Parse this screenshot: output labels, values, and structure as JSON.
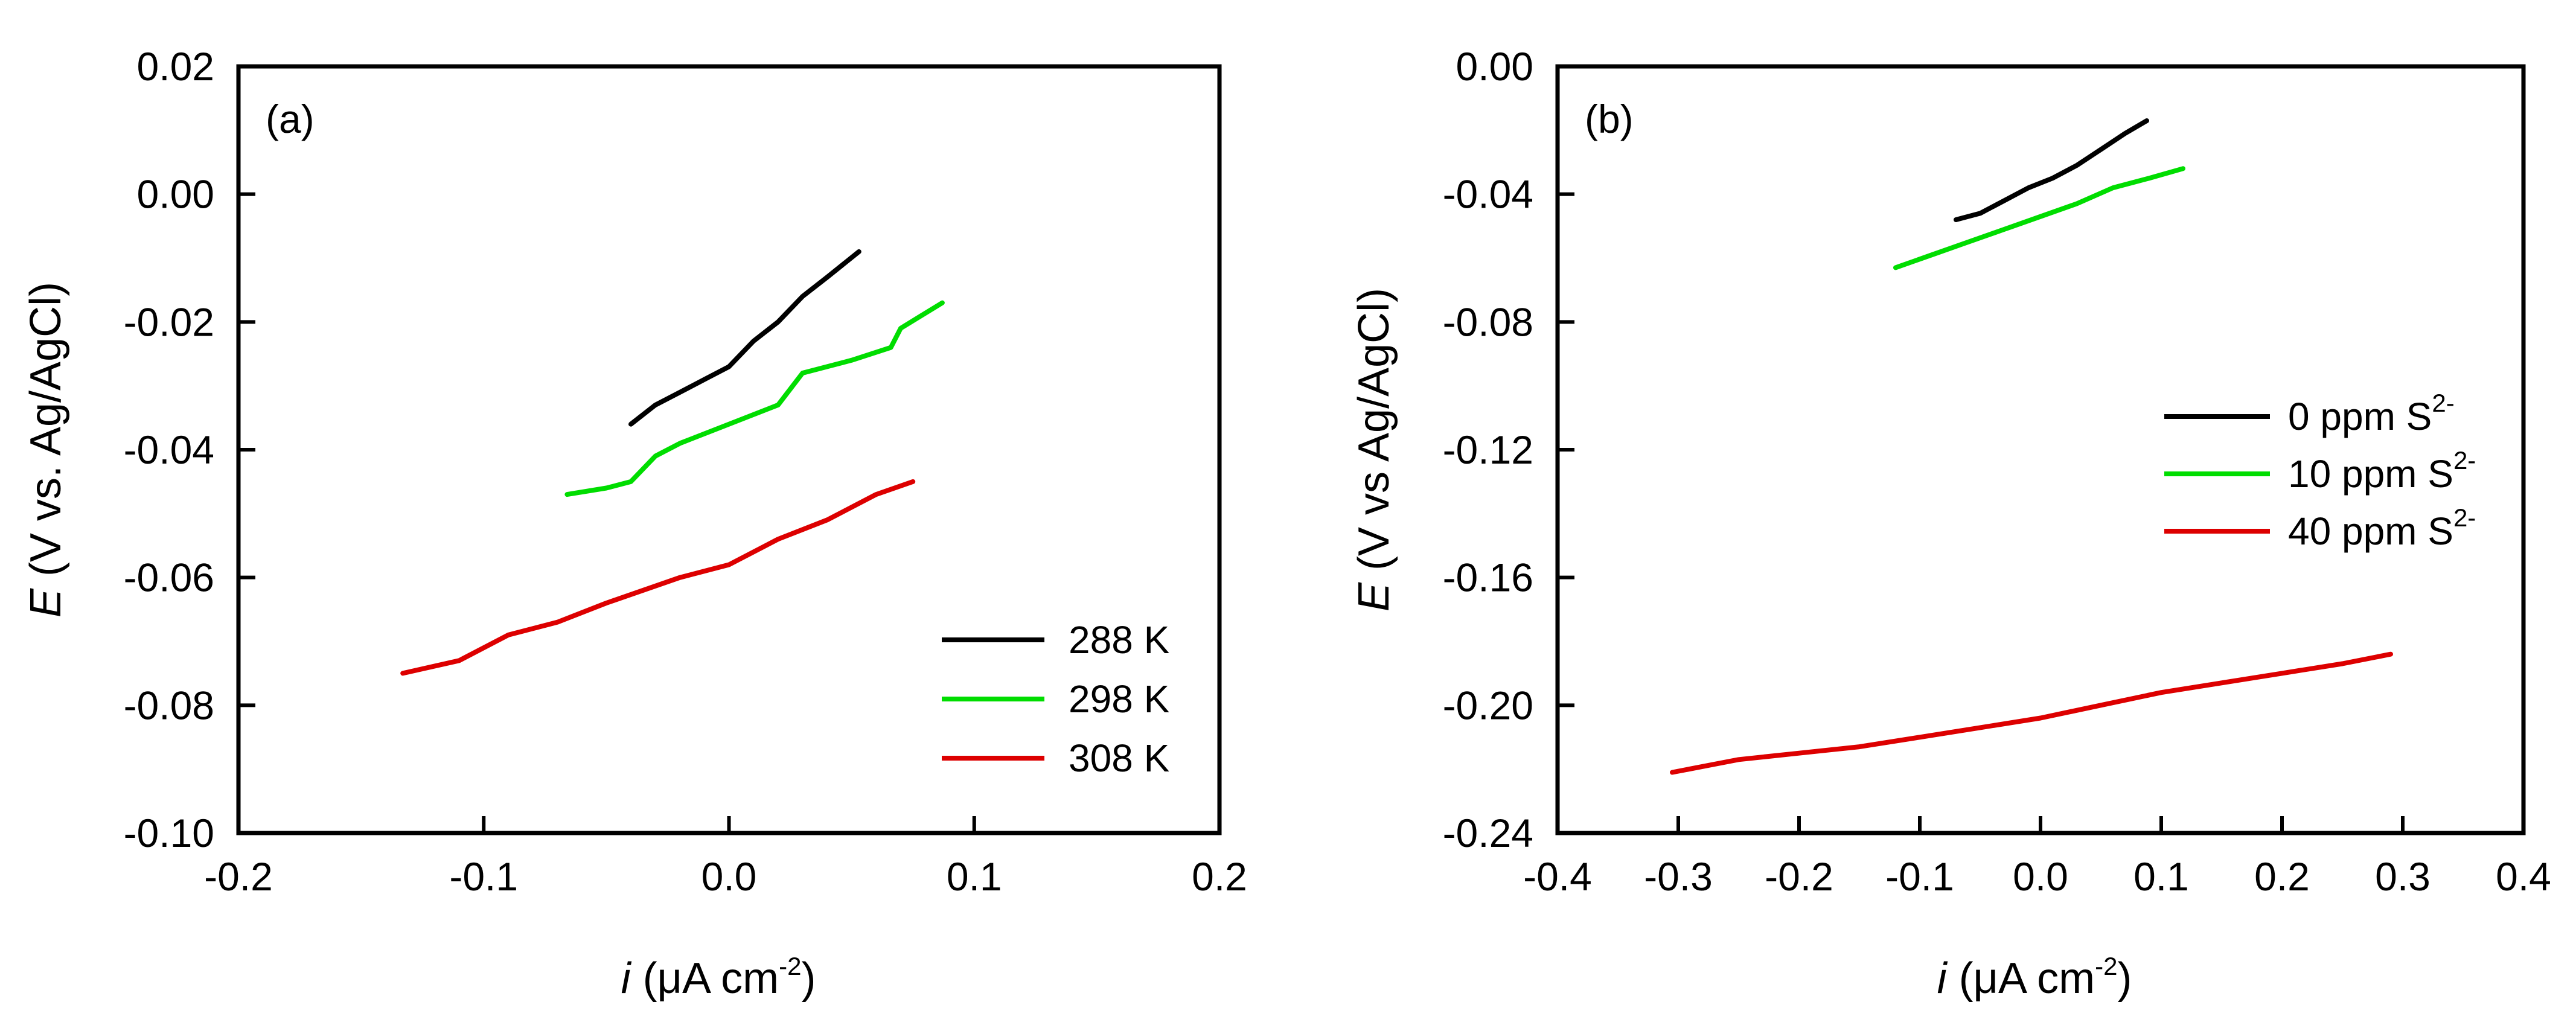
{
  "chart_data": [
    {
      "type": "line",
      "panel_label": "(a)",
      "title": "",
      "xlabel": {
        "italic": "i",
        "text": " (μA cm",
        "sup": "-2",
        "close": ")"
      },
      "ylabel": {
        "italic": "E",
        "text": " (V vs. Ag/AgCl)"
      },
      "xlim": [
        -0.2,
        0.2
      ],
      "ylim": [
        -0.1,
        0.02
      ],
      "xticks": [
        "-0.2",
        "-0.1",
        "0.0",
        "0.1",
        "0.2"
      ],
      "yticks": [
        "0.02",
        "0.00",
        "-0.02",
        "-0.04",
        "-0.06",
        "-0.08",
        "-0.10"
      ],
      "legend_position": "bottom-right",
      "series": [
        {
          "name": "288 K",
          "color": "#000000",
          "x": [
            -0.04,
            -0.03,
            -0.02,
            -0.01,
            0.0,
            0.01,
            0.02,
            0.03,
            0.04,
            0.053
          ],
          "y": [
            -0.036,
            -0.033,
            -0.031,
            -0.029,
            -0.027,
            -0.023,
            -0.02,
            -0.016,
            -0.013,
            -0.009
          ]
        },
        {
          "name": "298 K",
          "color": "#00dd00",
          "x": [
            -0.066,
            -0.05,
            -0.04,
            -0.03,
            -0.02,
            0.0,
            0.02,
            0.03,
            0.05,
            0.066,
            0.07,
            0.087
          ],
          "y": [
            -0.047,
            -0.046,
            -0.045,
            -0.041,
            -0.039,
            -0.036,
            -0.033,
            -0.028,
            -0.026,
            -0.024,
            -0.021,
            -0.017
          ]
        },
        {
          "name": "308 K",
          "color": "#dd0000",
          "x": [
            -0.133,
            -0.11,
            -0.09,
            -0.07,
            -0.05,
            -0.02,
            0.0,
            0.02,
            0.04,
            0.06,
            0.075
          ],
          "y": [
            -0.075,
            -0.073,
            -0.069,
            -0.067,
            -0.064,
            -0.06,
            -0.058,
            -0.054,
            -0.051,
            -0.047,
            -0.045
          ]
        }
      ]
    },
    {
      "type": "line",
      "panel_label": "(b)",
      "title": "",
      "xlabel": {
        "italic": "i",
        "text": " (μA cm",
        "sup": "-2",
        "close": ")"
      },
      "ylabel": {
        "italic": "E",
        "text": " (V vs Ag/AgCl)"
      },
      "xlim": [
        -0.4,
        0.4
      ],
      "ylim": [
        -0.24,
        0.0
      ],
      "xticks": [
        "-0.4",
        "-0.3",
        "-0.2",
        "-0.1",
        "0.0",
        "0.1",
        "0.2",
        "0.3",
        "0.4"
      ],
      "yticks": [
        "0.00",
        "-0.04",
        "-0.08",
        "-0.12",
        "-0.16",
        "-0.20",
        "-0.24"
      ],
      "legend_position": "center-right",
      "series": [
        {
          "name": "0 ppm S",
          "sup": "2-",
          "color": "#000000",
          "x": [
            -0.07,
            -0.05,
            -0.03,
            -0.01,
            0.01,
            0.03,
            0.05,
            0.07,
            0.088
          ],
          "y": [
            -0.048,
            -0.046,
            -0.042,
            -0.038,
            -0.035,
            -0.031,
            -0.026,
            -0.021,
            -0.017
          ]
        },
        {
          "name": "10 ppm S",
          "sup": "2-",
          "color": "#00dd00",
          "x": [
            -0.12,
            -0.09,
            -0.06,
            -0.03,
            0.0,
            0.03,
            0.06,
            0.09,
            0.118
          ],
          "y": [
            -0.063,
            -0.059,
            -0.055,
            -0.051,
            -0.047,
            -0.043,
            -0.038,
            -0.035,
            -0.032
          ]
        },
        {
          "name": "40 ppm S",
          "sup": "2-",
          "color": "#dd0000",
          "x": [
            -0.305,
            -0.25,
            -0.2,
            -0.15,
            -0.1,
            -0.05,
            0.0,
            0.05,
            0.1,
            0.15,
            0.2,
            0.25,
            0.29
          ],
          "y": [
            -0.221,
            -0.217,
            -0.215,
            -0.213,
            -0.21,
            -0.207,
            -0.204,
            -0.2,
            -0.196,
            -0.193,
            -0.19,
            -0.187,
            -0.184
          ]
        }
      ]
    }
  ]
}
